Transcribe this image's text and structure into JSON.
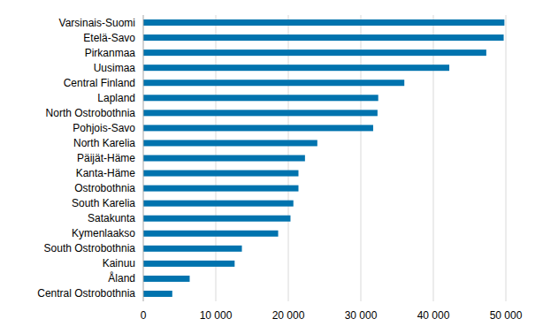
{
  "chart_data": {
    "type": "bar",
    "orientation": "horizontal",
    "categories": [
      "Varsinais-Suomi",
      "Etelä-Savo",
      "Pirkanmaa",
      "Uusimaa",
      "Central Finland",
      "Lapland",
      "North Ostrobothnia",
      "Pohjois-Savo",
      "North Karelia",
      "Päijät-Häme",
      "Kanta-Häme",
      "Ostrobothnia",
      "South Karelia",
      "Satakunta",
      "Kymenlaakso",
      "South Ostrobothnia",
      "Kainuu",
      "Åland",
      "Central Ostrobothnia"
    ],
    "values": [
      49800,
      49700,
      47300,
      42200,
      36000,
      32400,
      32300,
      31700,
      24000,
      22300,
      21400,
      21400,
      20700,
      20300,
      18600,
      13600,
      12600,
      6400,
      4000
    ],
    "color": "#0073ae",
    "xlim": [
      0,
      50000
    ],
    "xticks": [
      0,
      {
        "value": 10000,
        "label": "10 000"
      },
      {
        "value": 20000,
        "label": "20 000"
      },
      {
        "value": 30000,
        "label": "30 000"
      },
      {
        "value": 40000,
        "label": "40 000"
      },
      {
        "value": 50000,
        "label": "50 000"
      }
    ],
    "grid": true
  }
}
